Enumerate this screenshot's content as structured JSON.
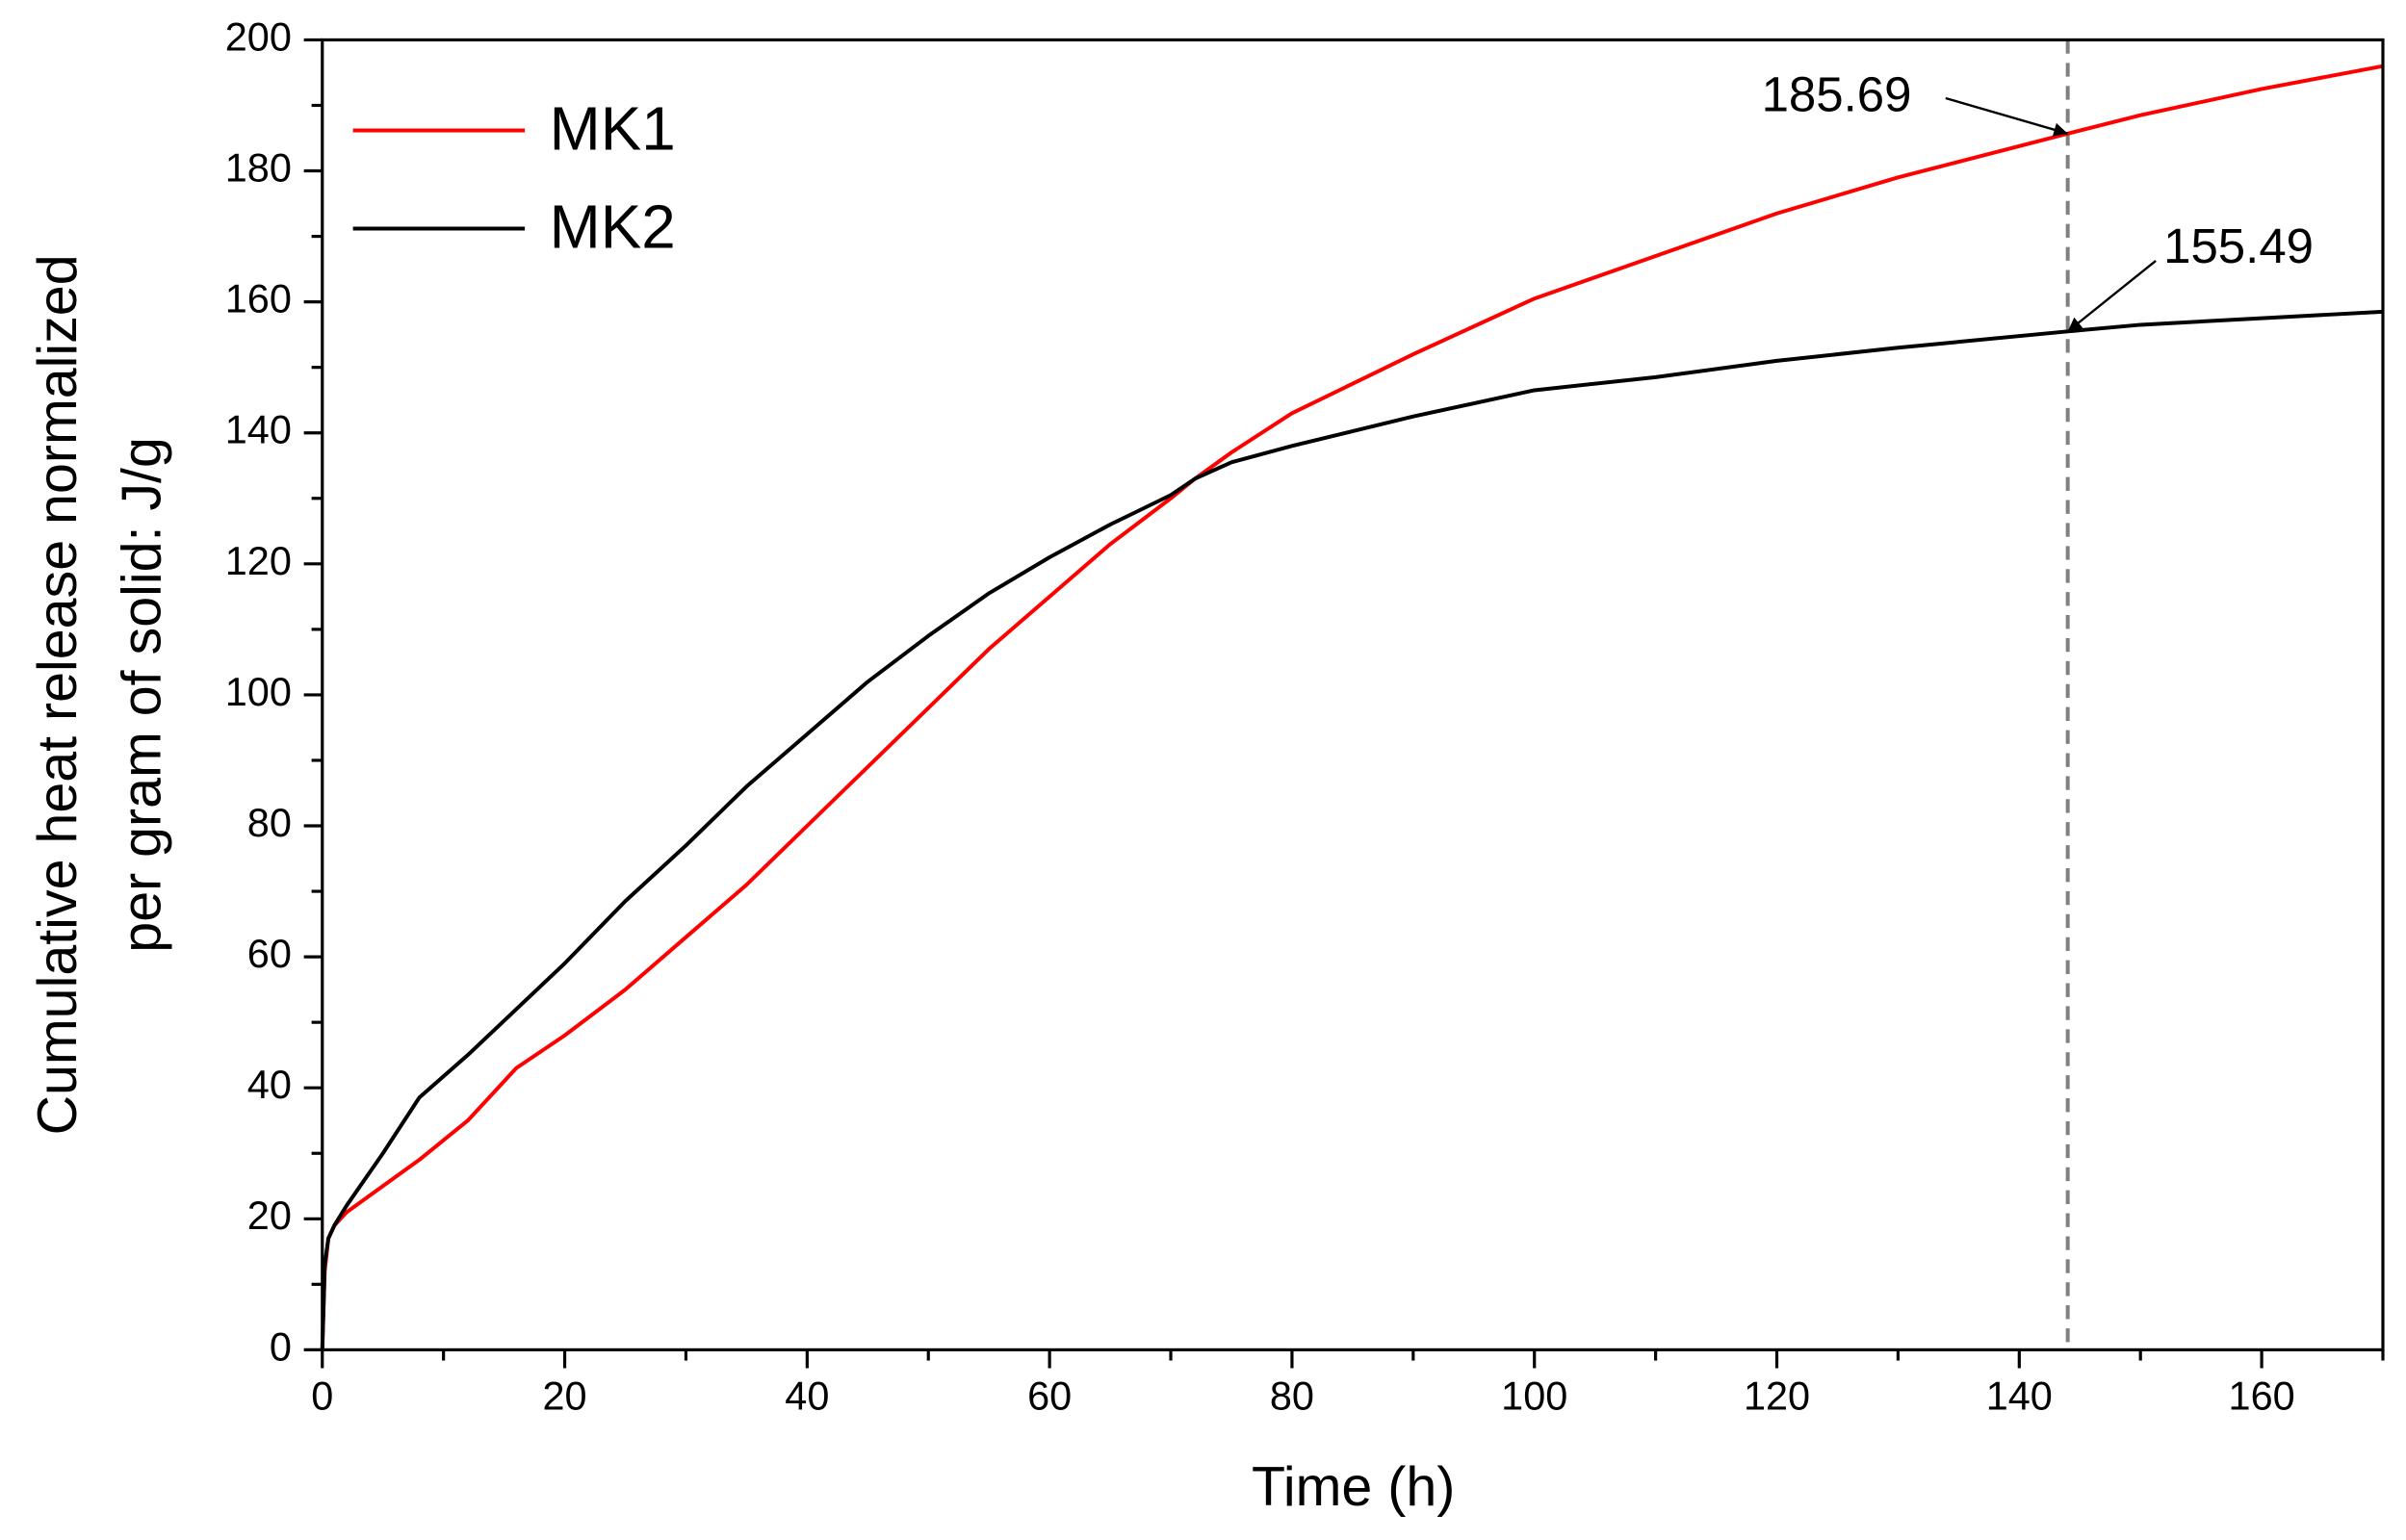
{
  "chart_data": {
    "type": "line",
    "xlabel": "Time (h)",
    "ylabel": [
      "Cumulative heat release normalized",
      "per gram of solid: J/g"
    ],
    "x": [
      0,
      0.2,
      0.5,
      1,
      2,
      5,
      8,
      12,
      16,
      20,
      25,
      30,
      35,
      40,
      45,
      50,
      55,
      60,
      65,
      70,
      72,
      75,
      80,
      90,
      100,
      110,
      120,
      130,
      144,
      150,
      160,
      170
    ],
    "series": [
      {
        "name": "MK1",
        "color": "#ff0000",
        "values": [
          0,
          12,
          17,
          19,
          21,
          25,
          29,
          35,
          43,
          48,
          55,
          63,
          71,
          80,
          89,
          98,
          107,
          115,
          123,
          130,
          133,
          137,
          143,
          152,
          160.5,
          167,
          173.5,
          179,
          185.69,
          188.5,
          192.5,
          196
        ]
      },
      {
        "name": "MK2",
        "color": "#000000",
        "values": [
          0,
          13,
          17,
          19,
          22,
          30,
          38.5,
          45,
          52,
          59,
          68.5,
          77,
          86,
          94,
          102,
          109,
          115.5,
          121,
          126,
          130.5,
          133,
          135.5,
          138,
          142.5,
          146.5,
          148.5,
          151,
          153,
          155.49,
          156.5,
          157.5,
          158.5
        ]
      }
    ],
    "annotations": [
      {
        "text": "185.69"
      },
      {
        "text": "155.49"
      }
    ],
    "vline": 144,
    "xlim": [
      0,
      170
    ],
    "xticks": [
      0,
      20,
      40,
      60,
      80,
      100,
      120,
      140,
      160
    ],
    "ylim": [
      0,
      200
    ],
    "yticks": [
      0,
      20,
      40,
      60,
      80,
      100,
      120,
      140,
      160,
      180,
      200
    ],
    "legend": "upper left",
    "grid": false
  }
}
